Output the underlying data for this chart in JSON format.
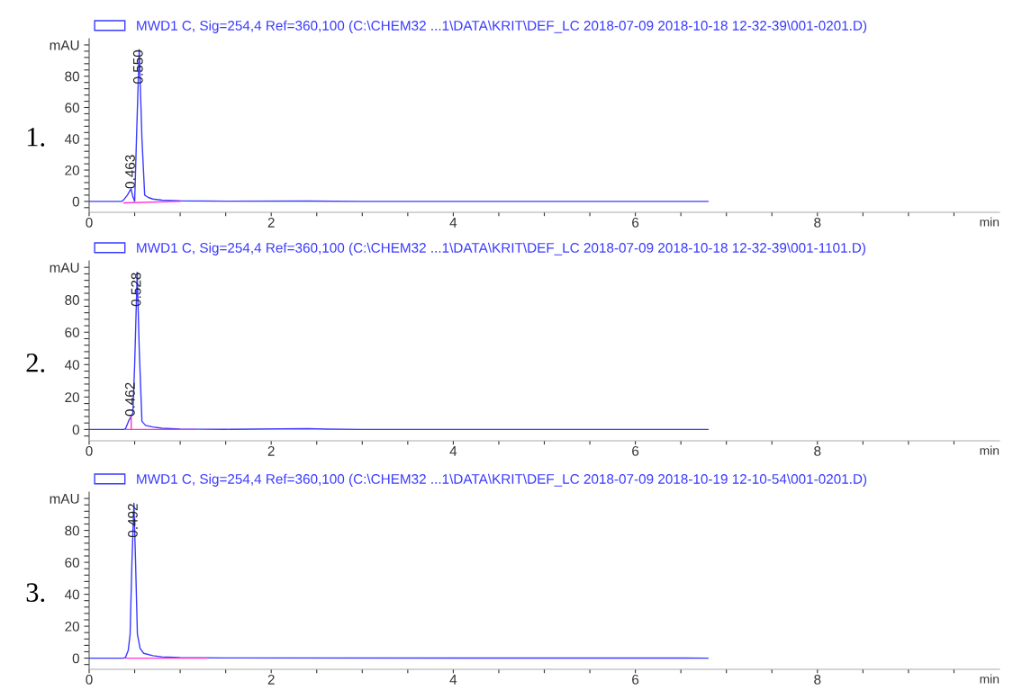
{
  "chart_data": [
    {
      "type": "line",
      "xlabel": "min",
      "legend": "top left",
      "grid": false,
      "xlim": [
        0,
        10
      ],
      "xticks": [
        0,
        {
          "value": 0.5,
          "label": null
        },
        {
          "value": 1,
          "label": null
        },
        {
          "value": 1.5,
          "label": null
        },
        2,
        {
          "value": 2.5,
          "label": null
        },
        {
          "value": 3,
          "label": null
        },
        {
          "value": 3.5,
          "label": null
        },
        4,
        {
          "value": 4.5,
          "label": null
        },
        {
          "value": 5,
          "label": null
        },
        {
          "value": 5.5,
          "label": null
        },
        6,
        {
          "value": 6.5,
          "label": null
        },
        {
          "value": 7,
          "label": null
        },
        {
          "value": 7.5,
          "label": null
        },
        8,
        {
          "value": 8.5,
          "label": null
        },
        {
          "value": 9,
          "label": null
        },
        {
          "value": 9.5,
          "label": null
        }
      ],
      "ylim": [
        -7,
        104
      ],
      "yticks": [
        {
          "value": -4,
          "label": null
        },
        0,
        {
          "value": 4,
          "label": null
        },
        {
          "value": 8,
          "label": null
        },
        {
          "value": 12,
          "label": null
        },
        {
          "value": 16,
          "label": null
        },
        20,
        {
          "value": 24,
          "label": null
        },
        {
          "value": 28,
          "label": null
        },
        {
          "value": 32,
          "label": null
        },
        {
          "value": 36,
          "label": null
        },
        40,
        {
          "value": 44,
          "label": null
        },
        {
          "value": 48,
          "label": null
        },
        {
          "value": 52,
          "label": null
        },
        {
          "value": 56,
          "label": null
        },
        60,
        {
          "value": 64,
          "label": null
        },
        {
          "value": 68,
          "label": null
        },
        {
          "value": 72,
          "label": null
        },
        {
          "value": 76,
          "label": null
        },
        80,
        {
          "value": 84,
          "label": null
        },
        {
          "value": 88,
          "label": null
        },
        {
          "value": 92,
          "label": null
        },
        {
          "value": 96,
          "label": null
        },
        {
          "value": 100,
          "label": "mAU"
        }
      ],
      "annotations": [
        "1.",
        {
          "text": "0.463",
          "x": 0.463,
          "y": 8
        },
        {
          "text": "0.550",
          "x": 0.55,
          "y": 97
        }
      ],
      "series": [
        {
          "name": "MWD1 C, Sig=254,4 Ref=360,100 (C:\\CHEM32 ...1\\DATA\\KRIT\\DEF_LC 2018-07-09 2018-10-18 12-32-39\\001-0201.D)",
          "color": "#3a3aff",
          "x": [
            0,
            0.36,
            0.38,
            0.42,
            0.46,
            0.48,
            0.5,
            0.52,
            0.55,
            0.58,
            0.61,
            0.65,
            0.7,
            0.8,
            1.0,
            1.5,
            2.4,
            3,
            6.8
          ],
          "values": [
            0,
            0,
            1,
            4,
            8,
            3,
            0,
            40,
            97,
            40,
            4,
            2.5,
            1.5,
            0.8,
            0.3,
            0.1,
            0.2,
            0,
            0
          ]
        },
        {
          "color": "#ff33cc",
          "x": [
            0.38,
            1.0
          ],
          "values": [
            -1,
            0
          ]
        }
      ]
    },
    {
      "type": "line",
      "xlabel": "min",
      "legend": "top left",
      "grid": false,
      "xlim": [
        0,
        10
      ],
      "xticks": [
        0,
        {
          "value": 0.5,
          "label": null
        },
        {
          "value": 1,
          "label": null
        },
        {
          "value": 1.5,
          "label": null
        },
        2,
        {
          "value": 2.5,
          "label": null
        },
        {
          "value": 3,
          "label": null
        },
        {
          "value": 3.5,
          "label": null
        },
        4,
        {
          "value": 4.5,
          "label": null
        },
        {
          "value": 5,
          "label": null
        },
        {
          "value": 5.5,
          "label": null
        },
        6,
        {
          "value": 6.5,
          "label": null
        },
        {
          "value": 7,
          "label": null
        },
        {
          "value": 7.5,
          "label": null
        },
        8,
        {
          "value": 8.5,
          "label": null
        },
        {
          "value": 9,
          "label": null
        },
        {
          "value": 9.5,
          "label": null
        }
      ],
      "ylim": [
        -7,
        104
      ],
      "yticks": [
        {
          "value": -4,
          "label": null
        },
        0,
        {
          "value": 4,
          "label": null
        },
        {
          "value": 8,
          "label": null
        },
        {
          "value": 12,
          "label": null
        },
        {
          "value": 16,
          "label": null
        },
        20,
        {
          "value": 24,
          "label": null
        },
        {
          "value": 28,
          "label": null
        },
        {
          "value": 32,
          "label": null
        },
        {
          "value": 36,
          "label": null
        },
        40,
        {
          "value": 44,
          "label": null
        },
        {
          "value": 48,
          "label": null
        },
        {
          "value": 52,
          "label": null
        },
        {
          "value": 56,
          "label": null
        },
        60,
        {
          "value": 64,
          "label": null
        },
        {
          "value": 68,
          "label": null
        },
        {
          "value": 72,
          "label": null
        },
        {
          "value": 76,
          "label": null
        },
        80,
        {
          "value": 84,
          "label": null
        },
        {
          "value": 88,
          "label": null
        },
        {
          "value": 92,
          "label": null
        },
        {
          "value": 96,
          "label": null
        },
        {
          "value": 100,
          "label": "mAU"
        }
      ],
      "annotations": [
        "2.",
        {
          "text": "0.462",
          "x": 0.462,
          "y": 8
        },
        {
          "text": "0.528",
          "x": 0.528,
          "y": 97
        }
      ],
      "series": [
        {
          "name": "MWD1 C, Sig=254,4 Ref=360,100 (C:\\CHEM32 ...1\\DATA\\KRIT\\DEF_LC 2018-07-09 2018-10-18 12-32-39\\001-1101.D)",
          "color": "#3a3aff",
          "x": [
            0,
            0.38,
            0.4,
            0.44,
            0.46,
            0.48,
            0.5,
            0.528,
            0.55,
            0.58,
            0.62,
            0.7,
            0.8,
            1.0,
            1.5,
            2.4,
            2.6,
            3,
            6.8
          ],
          "values": [
            0,
            0,
            0.5,
            6,
            8,
            10,
            40,
            97,
            50,
            5,
            2.5,
            1.5,
            0.8,
            0.3,
            0.1,
            0.5,
            0.2,
            0,
            0
          ]
        },
        {
          "color": "#ff33cc",
          "x": [
            0.4,
            1.17
          ],
          "values": [
            0,
            0
          ]
        },
        {
          "color": "#ff33cc",
          "x": [
            0.462,
            0.462
          ],
          "values": [
            0,
            8
          ]
        }
      ]
    },
    {
      "type": "line",
      "xlabel": "min",
      "legend": "top left",
      "grid": false,
      "xlim": [
        0,
        10
      ],
      "xticks": [
        0,
        {
          "value": 0.5,
          "label": null
        },
        {
          "value": 1,
          "label": null
        },
        {
          "value": 1.5,
          "label": null
        },
        2,
        {
          "value": 2.5,
          "label": null
        },
        {
          "value": 3,
          "label": null
        },
        {
          "value": 3.5,
          "label": null
        },
        4,
        {
          "value": 4.5,
          "label": null
        },
        {
          "value": 5,
          "label": null
        },
        {
          "value": 5.5,
          "label": null
        },
        6,
        {
          "value": 6.5,
          "label": null
        },
        {
          "value": 7,
          "label": null
        },
        {
          "value": 7.5,
          "label": null
        },
        8,
        {
          "value": 8.5,
          "label": null
        },
        {
          "value": 9,
          "label": null
        },
        {
          "value": 9.5,
          "label": null
        }
      ],
      "ylim": [
        -7,
        104
      ],
      "yticks": [
        {
          "value": -4,
          "label": null
        },
        0,
        {
          "value": 4,
          "label": null
        },
        {
          "value": 8,
          "label": null
        },
        {
          "value": 12,
          "label": null
        },
        {
          "value": 16,
          "label": null
        },
        20,
        {
          "value": 24,
          "label": null
        },
        {
          "value": 28,
          "label": null
        },
        {
          "value": 32,
          "label": null
        },
        {
          "value": 36,
          "label": null
        },
        40,
        {
          "value": 44,
          "label": null
        },
        {
          "value": 48,
          "label": null
        },
        {
          "value": 52,
          "label": null
        },
        {
          "value": 56,
          "label": null
        },
        60,
        {
          "value": 64,
          "label": null
        },
        {
          "value": 68,
          "label": null
        },
        {
          "value": 72,
          "label": null
        },
        {
          "value": 76,
          "label": null
        },
        80,
        {
          "value": 84,
          "label": null
        },
        {
          "value": 88,
          "label": null
        },
        {
          "value": 92,
          "label": null
        },
        {
          "value": 96,
          "label": null
        },
        {
          "value": 100,
          "label": "mAU"
        }
      ],
      "annotations": [
        "3.",
        {
          "text": "0.492",
          "x": 0.492,
          "y": 97
        }
      ],
      "series": [
        {
          "name": "MWD1 C, Sig=254,4 Ref=360,100 (C:\\CHEM32 ...1\\DATA\\KRIT\\DEF_LC 2018-07-09 2018-10-19 12-10-54\\001-0201.D)",
          "color": "#3a3aff",
          "x": [
            0,
            0.38,
            0.4,
            0.43,
            0.45,
            0.47,
            0.492,
            0.51,
            0.53,
            0.56,
            0.6,
            0.7,
            0.8,
            1.0,
            1.5,
            6.8
          ],
          "values": [
            0,
            0,
            0.5,
            5,
            15,
            60,
            97,
            60,
            15,
            6,
            3,
            1.5,
            0.8,
            0.3,
            0.1,
            0
          ]
        },
        {
          "color": "#ff33cc",
          "x": [
            0.4,
            1.29
          ],
          "values": [
            0,
            0
          ]
        }
      ]
    }
  ]
}
